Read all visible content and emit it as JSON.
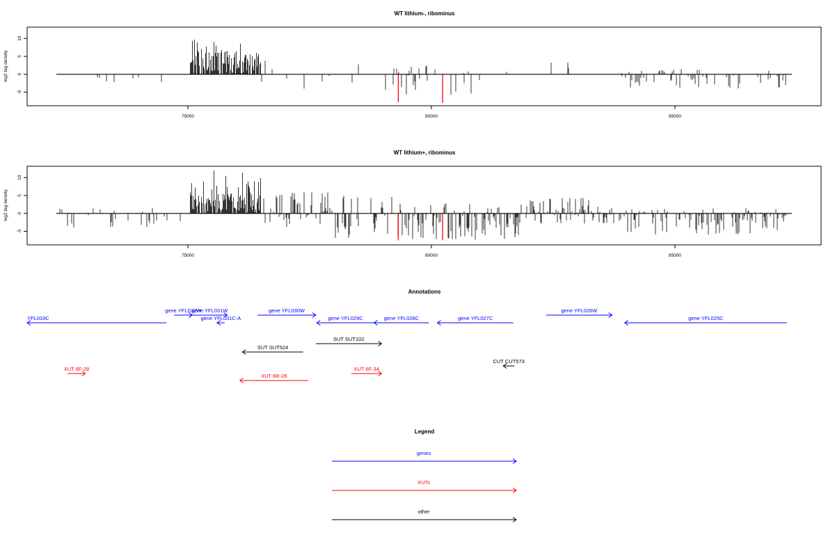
{
  "colors": {
    "gene": "#0000ff",
    "xut": "#ff0000",
    "other": "#000000",
    "highlight": "#ff0000"
  },
  "chart_data": [
    {
      "type": "bar",
      "title": "WT lithium-, ribominus",
      "ylabel": "log2 tag density",
      "xlim": [
        72300,
        87400
      ],
      "ylim": [
        -8,
        12
      ],
      "x_ticks": [
        "75000",
        "80000",
        "85000"
      ],
      "y_ticks": [
        "-5",
        "0",
        "5",
        "10"
      ],
      "segments": [
        {
          "from": 72300,
          "to": 75000,
          "min": -3.5,
          "max": 0,
          "density": 0.03
        },
        {
          "from": 75050,
          "to": 76500,
          "min": 0,
          "max": 10.5,
          "density": 0.85
        },
        {
          "from": 76500,
          "to": 79000,
          "min": -4,
          "max": 4,
          "density": 0.07
        },
        {
          "from": 79000,
          "to": 81000,
          "min": -6,
          "max": 3,
          "density": 0.18
        },
        {
          "from": 81000,
          "to": 83900,
          "min": -3,
          "max": 3.5,
          "density": 0.04
        },
        {
          "from": 83900,
          "to": 87300,
          "min": -4,
          "max": 1.5,
          "density": 0.22
        }
      ],
      "highlights": [
        {
          "x": 79320,
          "y": -7.8
        },
        {
          "x": 80230,
          "y": -8
        }
      ]
    },
    {
      "type": "bar",
      "title": "WT lithium+, ribominus",
      "ylabel": "log2 tag density",
      "xlim": [
        72300,
        87400
      ],
      "ylim": [
        -8,
        12
      ],
      "x_ticks": [
        "75000",
        "80000",
        "85000"
      ],
      "y_ticks": [
        "-5",
        "0",
        "5",
        "10"
      ],
      "segments": [
        {
          "from": 72300,
          "to": 75000,
          "min": -4,
          "max": 1.5,
          "density": 0.12
        },
        {
          "from": 75050,
          "to": 76500,
          "min": 0,
          "max": 13,
          "density": 0.9
        },
        {
          "from": 76500,
          "to": 78000,
          "min": -4,
          "max": 6,
          "density": 0.55
        },
        {
          "from": 78000,
          "to": 79300,
          "min": -7,
          "max": 5,
          "density": 0.3
        },
        {
          "from": 79300,
          "to": 81900,
          "min": -7.5,
          "max": 3,
          "density": 0.45
        },
        {
          "from": 81900,
          "to": 84000,
          "min": -3,
          "max": 4.5,
          "density": 0.4
        },
        {
          "from": 84000,
          "to": 87300,
          "min": -6,
          "max": 1.5,
          "density": 0.45
        }
      ],
      "highlights": [
        {
          "x": 79320,
          "y": -7.5
        },
        {
          "x": 80230,
          "y": -7.5
        }
      ]
    }
  ],
  "annotations": {
    "title": "Annotations",
    "items": [
      {
        "label": "YFL033C",
        "kind": "gene",
        "dir": "left",
        "start": 72300,
        "end": 75050,
        "row": 1
      },
      {
        "label": "gene YFL032W",
        "kind": "gene",
        "dir": "right",
        "start": 75200,
        "end": 75560,
        "row": 0
      },
      {
        "label": "gene YFL031W",
        "kind": "gene",
        "dir": "right",
        "start": 75560,
        "end": 76250,
        "row": 0
      },
      {
        "label": "gene YFL031C-A",
        "kind": "gene",
        "dir": "left",
        "start": 76050,
        "end": 76200,
        "row": 1
      },
      {
        "label": "gene YFL030W",
        "kind": "gene",
        "dir": "right",
        "start": 76850,
        "end": 78000,
        "row": 0
      },
      {
        "label": "gene YFL029C",
        "kind": "gene",
        "dir": "left",
        "start": 78020,
        "end": 79150,
        "row": 1
      },
      {
        "label": "gene YFL028C",
        "kind": "gene",
        "dir": "left",
        "start": 79150,
        "end": 80230,
        "row": 1
      },
      {
        "label": "gene YFL027C",
        "kind": "gene",
        "dir": "left",
        "start": 80400,
        "end": 81900,
        "row": 1
      },
      {
        "label": "gene YFL026W",
        "kind": "gene",
        "dir": "right",
        "start": 82550,
        "end": 83850,
        "row": 0
      },
      {
        "label": "gene YFL025C",
        "kind": "gene",
        "dir": "left",
        "start": 84100,
        "end": 87300,
        "row": 1
      },
      {
        "label": "SUT SUT102",
        "kind": "other",
        "dir": "right",
        "start": 78000,
        "end": 79300,
        "row": 2
      },
      {
        "label": "SUT SUT524",
        "kind": "other",
        "dir": "left",
        "start": 76550,
        "end": 77750,
        "row": 3
      },
      {
        "label": "CUT CUT573",
        "kind": "other",
        "dir": "left",
        "start": 81700,
        "end": 81920,
        "row": 4
      },
      {
        "label": "XUT 6F-28",
        "kind": "xut",
        "dir": "right",
        "start": 73100,
        "end": 73450,
        "row": 5
      },
      {
        "label": "XUT 6F-34",
        "kind": "xut",
        "dir": "right",
        "start": 78700,
        "end": 79300,
        "row": 5
      },
      {
        "label": "XUT 6R-28",
        "kind": "xut",
        "dir": "left",
        "start": 76500,
        "end": 77850,
        "row": 6
      }
    ]
  },
  "legend": {
    "title": "Legend",
    "items": [
      {
        "label": "genes",
        "kind": "gene"
      },
      {
        "label": "XUTs",
        "kind": "xut"
      },
      {
        "label": "other",
        "kind": "other"
      }
    ]
  }
}
